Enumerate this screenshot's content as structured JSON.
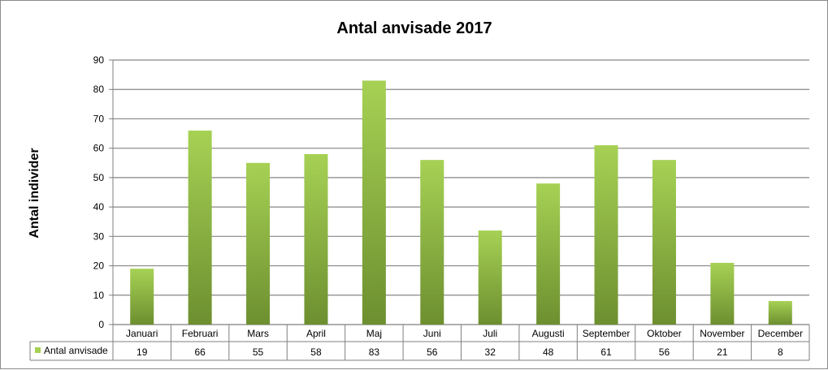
{
  "chart_data": {
    "type": "bar",
    "title": "Antal anvisade 2017",
    "xlabel": "",
    "ylabel": "Antal individer",
    "ylim": [
      0,
      90
    ],
    "yticks": [
      0,
      10,
      20,
      30,
      40,
      50,
      60,
      70,
      80,
      90
    ],
    "grid": true,
    "categories": [
      "Januari",
      "Februari",
      "Mars",
      "April",
      "Maj",
      "Juni",
      "Juli",
      "Augusti",
      "September",
      "Oktober",
      "November",
      "December"
    ],
    "series": [
      {
        "name": "Antal anvisade",
        "values": [
          19,
          66,
          55,
          58,
          83,
          56,
          32,
          48,
          61,
          56,
          21,
          8
        ],
        "color_top": "#a6d154",
        "color_bottom": "#6d8f30"
      }
    ],
    "data_table": true
  }
}
